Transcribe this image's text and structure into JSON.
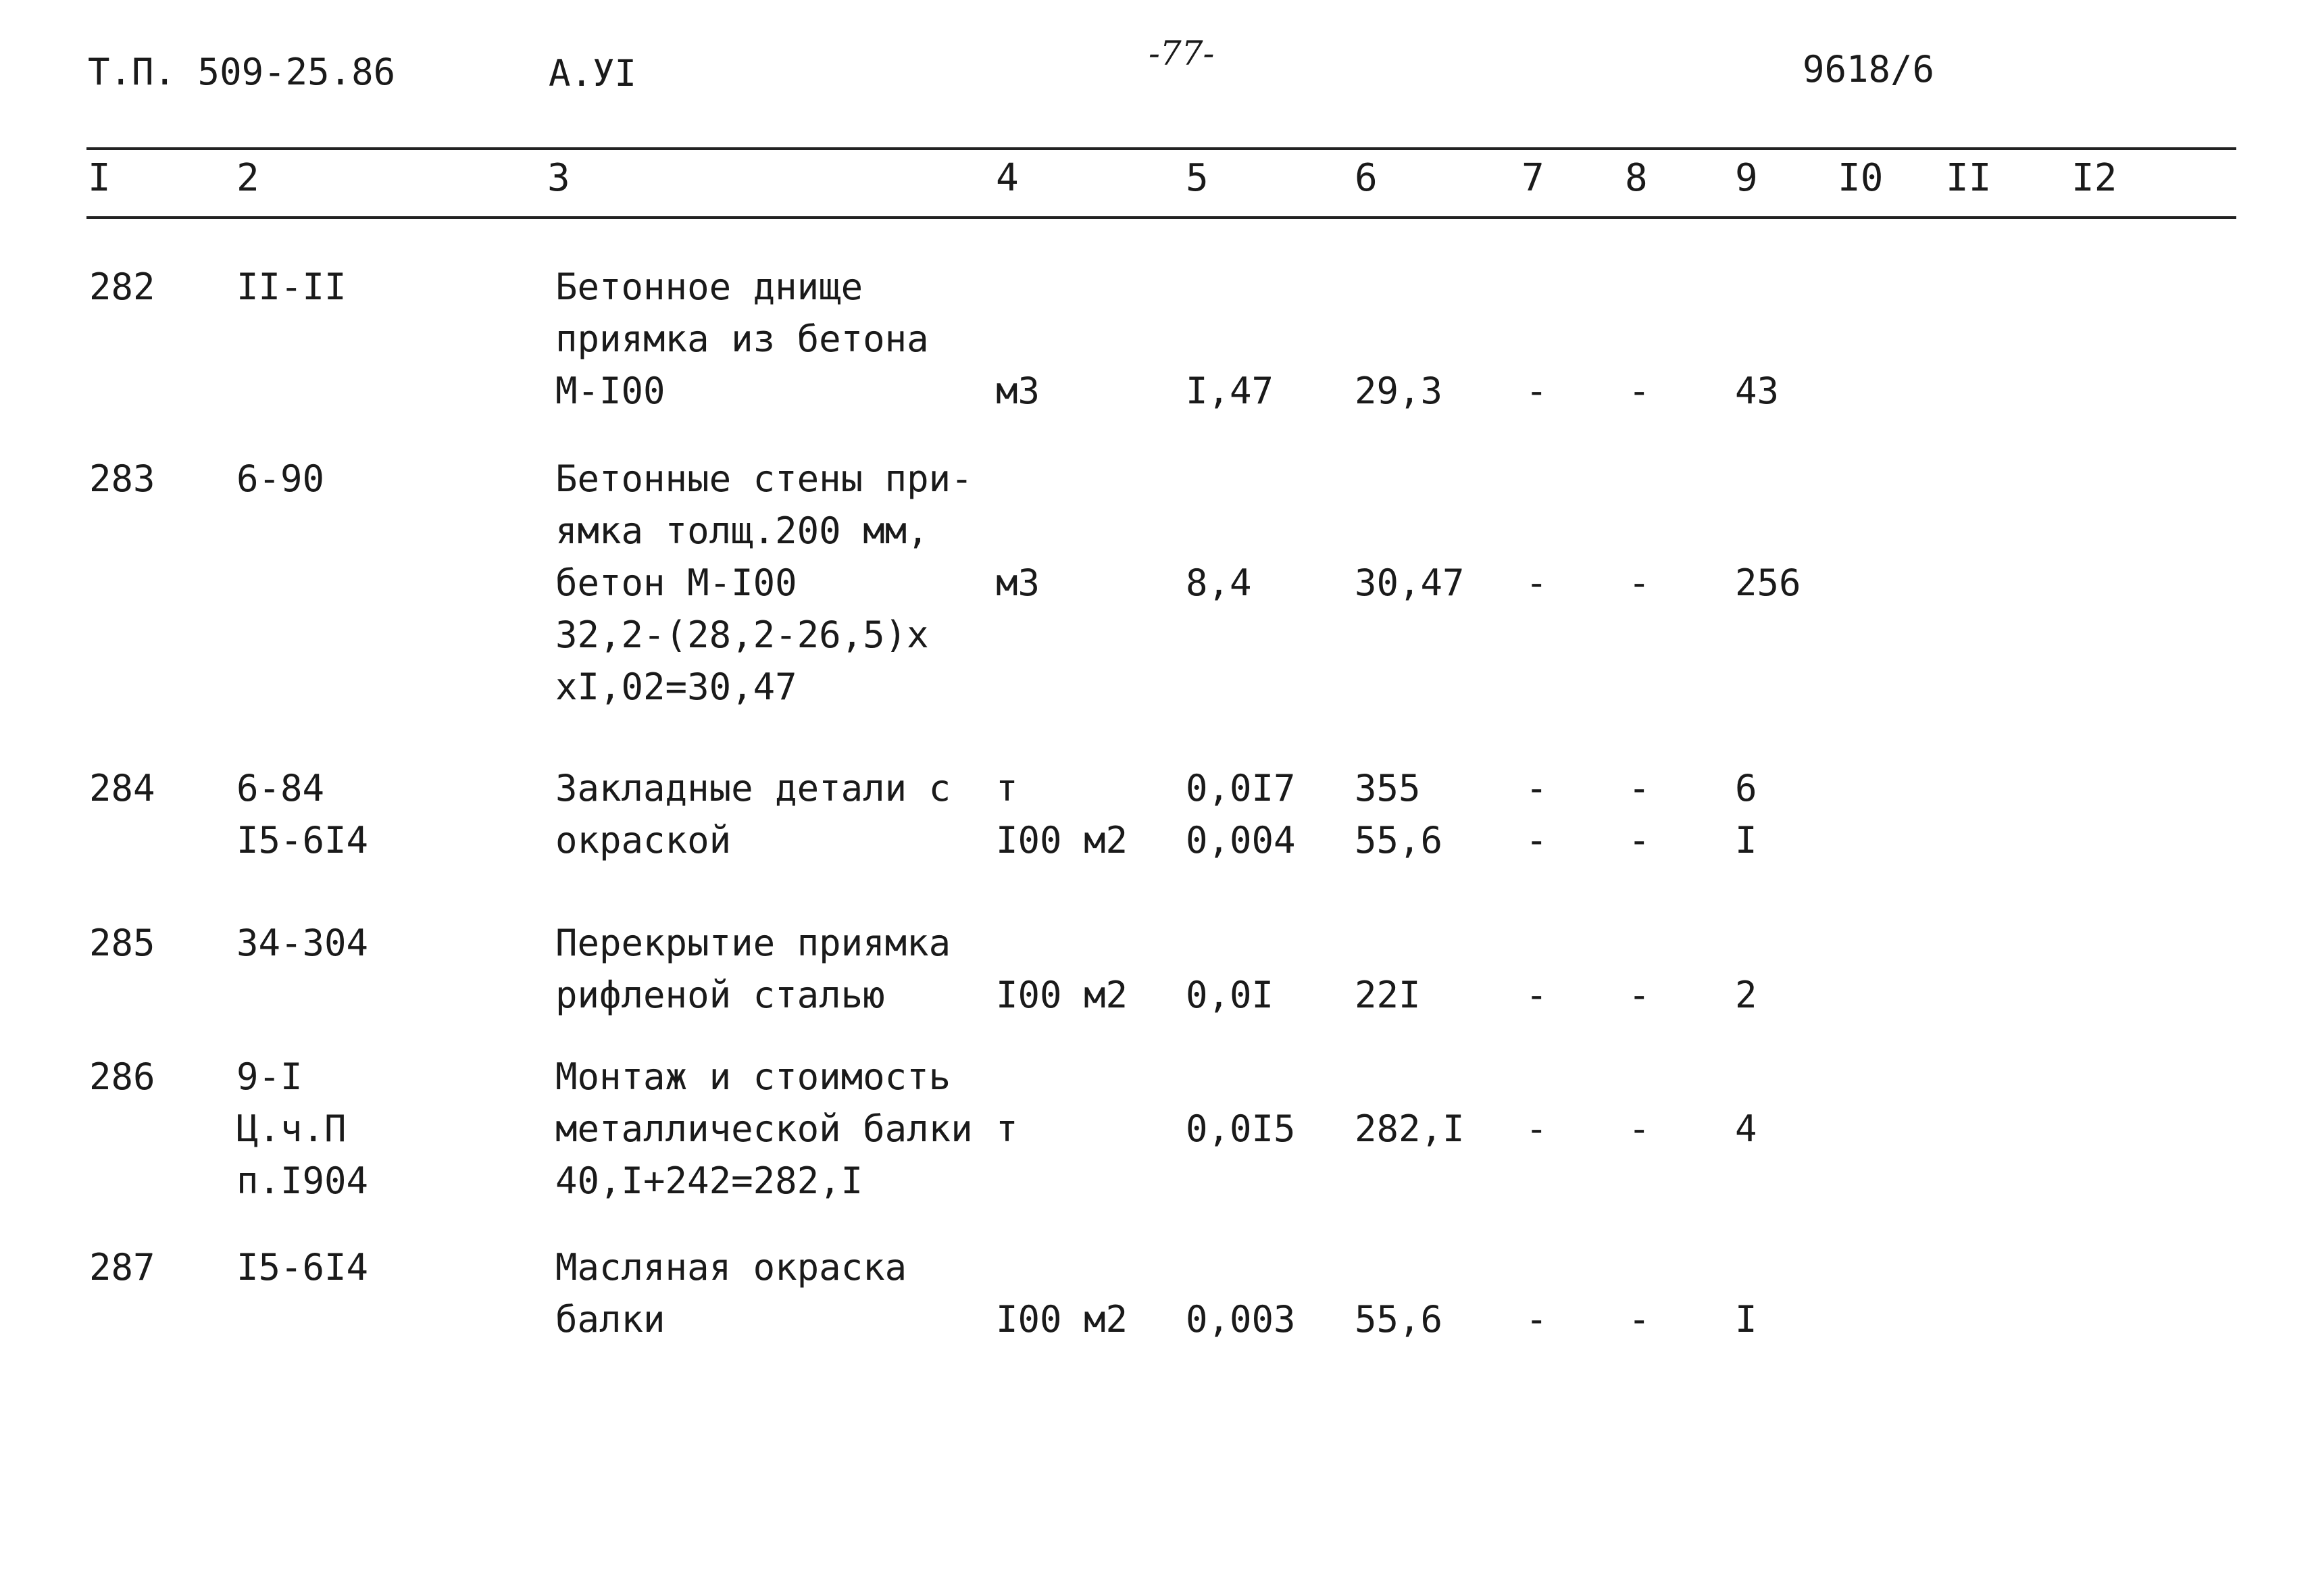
{
  "header": {
    "project_code": "Т.П. 509-25.86",
    "album": "А.УI",
    "page_mark": "-77-",
    "sheet_number": "9618/6"
  },
  "column_numbers": [
    "I",
    "2",
    "3",
    "4",
    "5",
    "6",
    "7",
    "8",
    "9",
    "I0",
    "II",
    "I2"
  ],
  "rows": [
    {
      "pos": "282",
      "code": [
        "II-II"
      ],
      "desc": [
        "Бетонное днище",
        "приямка из бетона",
        "М-I00"
      ],
      "unit": [
        "м3"
      ],
      "qty": [
        "I,47"
      ],
      "price": [
        "29,3"
      ],
      "c7": [
        "-"
      ],
      "c8": [
        "-"
      ],
      "c9": [
        "43"
      ]
    },
    {
      "pos": "283",
      "code": [
        "6-90"
      ],
      "desc": [
        "Бетонные стены при-",
        "ямка толщ.200 мм,",
        "бетон М-I00",
        "32,2-(28,2-26,5)х",
        "хI,02=30,47"
      ],
      "unit": [
        "м3"
      ],
      "qty": [
        "8,4"
      ],
      "price": [
        "30,47"
      ],
      "c7": [
        "-"
      ],
      "c8": [
        "-"
      ],
      "c9": [
        "256"
      ]
    },
    {
      "pos": "284",
      "code": [
        "6-84",
        "I5-6I4"
      ],
      "desc": [
        "Закладные детали с",
        "окраской"
      ],
      "unit": [
        "т",
        "I00 м2"
      ],
      "qty": [
        "0,0I7",
        "0,004"
      ],
      "price": [
        "355",
        "55,6"
      ],
      "c7": [
        "-",
        "-"
      ],
      "c8": [
        "-",
        "-"
      ],
      "c9": [
        "6",
        "I"
      ]
    },
    {
      "pos": "285",
      "code": [
        "34-304"
      ],
      "desc": [
        "Перекрытие приямка",
        "рифленой сталью"
      ],
      "unit": [
        "I00 м2"
      ],
      "qty": [
        "0,0I"
      ],
      "price": [
        "22I"
      ],
      "c7": [
        "-"
      ],
      "c8": [
        "-"
      ],
      "c9": [
        "2"
      ]
    },
    {
      "pos": "286",
      "code": [
        "9-I",
        "Ц.ч.П",
        "п.I904"
      ],
      "desc": [
        "Монтаж и стоимость",
        "металлической балки",
        "40,I+242=282,I"
      ],
      "unit": [
        "т"
      ],
      "qty": [
        "0,0I5"
      ],
      "price": [
        "282,I"
      ],
      "c7": [
        "-"
      ],
      "c8": [
        "-"
      ],
      "c9": [
        "4"
      ]
    },
    {
      "pos": "287",
      "code": [
        "I5-6I4"
      ],
      "desc": [
        "Масляная окраска",
        "балки"
      ],
      "unit": [
        "I00 м2"
      ],
      "qty": [
        "0,003"
      ],
      "price": [
        "55,6"
      ],
      "c7": [
        "-"
      ],
      "c8": [
        "-"
      ],
      "c9": [
        "I"
      ]
    }
  ]
}
